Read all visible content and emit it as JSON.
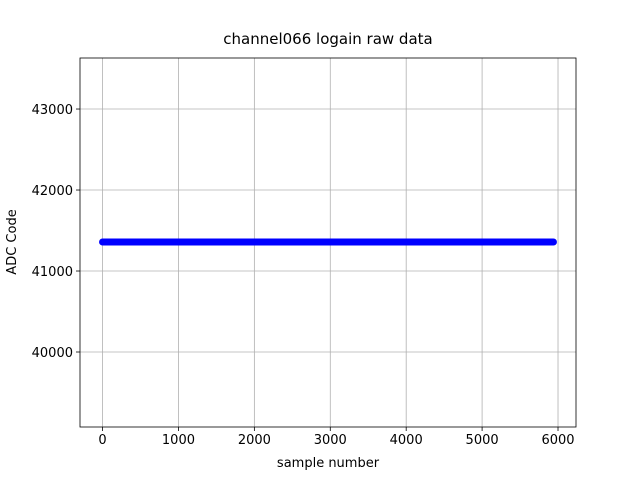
{
  "chart_data": {
    "type": "line",
    "title": "channel066 logain raw data",
    "x_label": "sample number",
    "y_label": "ADC Code",
    "x": [
      0,
      5940
    ],
    "values": [
      41358,
      41358
    ],
    "color": "#0000ff",
    "xlim": [
      -297,
      6237
    ],
    "xticks": [
      0,
      1000,
      2000,
      3000,
      4000,
      5000,
      6000
    ],
    "ylim": [
      39074,
      43630
    ],
    "yticks": [
      40000,
      41000,
      42000,
      43000
    ],
    "grid": true
  }
}
